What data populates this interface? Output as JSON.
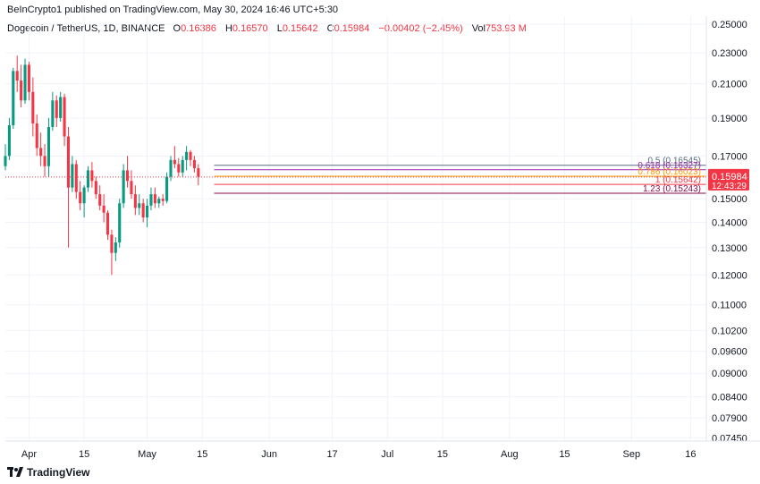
{
  "publisher": "BeInCrypto1 published on TradingView.com, May 30, 2024 16:46 UTC+5:30",
  "legend": {
    "symbol": "Dogecoin / TetherUS, 1D, BINANCE",
    "o_label": "O",
    "o": "0.16386",
    "h_label": "H",
    "h": "0.16570",
    "l_label": "L",
    "l": "0.15642",
    "c_label": "C",
    "c": "0.15984",
    "change": "−0.00402 (−2.45%)",
    "vol_label": "Vol",
    "vol": "753.93 M"
  },
  "brand": "TradingView",
  "colors": {
    "up": "#089981",
    "down": "#f23645",
    "grid": "#f0f3fa",
    "text": "#131722"
  },
  "chart_data": {
    "type": "candlestick",
    "scale": "log",
    "ylim": [
      0.0738,
      0.256
    ],
    "y_ticks": [
      "0.25000",
      "0.23000",
      "0.21000",
      "0.19000",
      "0.17000",
      "0.15000",
      "0.14000",
      "0.13000",
      "0.12000",
      "0.11000",
      "0.10200",
      "0.09600",
      "0.09000",
      "0.08400",
      "0.07900",
      "0.07450"
    ],
    "x_ticks": [
      {
        "label": "Apr",
        "day": 0
      },
      {
        "label": "15",
        "day": 14
      },
      {
        "label": "May",
        "day": 30
      },
      {
        "label": "15",
        "day": 44
      },
      {
        "label": "Jun",
        "day": 61
      },
      {
        "label": "17",
        "day": 77
      },
      {
        "label": "Jul",
        "day": 91
      },
      {
        "label": "15",
        "day": 105
      },
      {
        "label": "Aug",
        "day": 122
      },
      {
        "label": "15",
        "day": 136
      },
      {
        "label": "Sep",
        "day": 153
      },
      {
        "label": "16",
        "day": 168
      }
    ],
    "x_range_days": [
      -6,
      172
    ],
    "first_candle_day": -6,
    "candles": [
      [
        0.165,
        0.176,
        0.163,
        0.17
      ],
      [
        0.17,
        0.19,
        0.168,
        0.186
      ],
      [
        0.186,
        0.22,
        0.184,
        0.218
      ],
      [
        0.218,
        0.228,
        0.205,
        0.212
      ],
      [
        0.212,
        0.222,
        0.196,
        0.2
      ],
      [
        0.2,
        0.226,
        0.198,
        0.222
      ],
      [
        0.222,
        0.224,
        0.2,
        0.205
      ],
      [
        0.205,
        0.214,
        0.18,
        0.187
      ],
      [
        0.187,
        0.192,
        0.17,
        0.174
      ],
      [
        0.174,
        0.182,
        0.165,
        0.17
      ],
      [
        0.17,
        0.176,
        0.16,
        0.165
      ],
      [
        0.165,
        0.19,
        0.16,
        0.185
      ],
      [
        0.185,
        0.205,
        0.183,
        0.2
      ],
      [
        0.2,
        0.203,
        0.185,
        0.19
      ],
      [
        0.19,
        0.205,
        0.188,
        0.202
      ],
      [
        0.202,
        0.204,
        0.175,
        0.18
      ],
      [
        0.18,
        0.185,
        0.13,
        0.155
      ],
      [
        0.155,
        0.17,
        0.153,
        0.166
      ],
      [
        0.166,
        0.168,
        0.15,
        0.153
      ],
      [
        0.153,
        0.158,
        0.145,
        0.148
      ],
      [
        0.148,
        0.156,
        0.142,
        0.155
      ],
      [
        0.155,
        0.165,
        0.153,
        0.163
      ],
      [
        0.163,
        0.167,
        0.155,
        0.158
      ],
      [
        0.158,
        0.16,
        0.15,
        0.152
      ],
      [
        0.152,
        0.156,
        0.145,
        0.147
      ],
      [
        0.147,
        0.152,
        0.14,
        0.144
      ],
      [
        0.144,
        0.145,
        0.133,
        0.135
      ],
      [
        0.135,
        0.137,
        0.12,
        0.128
      ],
      [
        0.128,
        0.134,
        0.125,
        0.132
      ],
      [
        0.132,
        0.15,
        0.13,
        0.148
      ],
      [
        0.148,
        0.166,
        0.146,
        0.163
      ],
      [
        0.163,
        0.17,
        0.155,
        0.158
      ],
      [
        0.158,
        0.163,
        0.15,
        0.152
      ],
      [
        0.152,
        0.156,
        0.143,
        0.146
      ],
      [
        0.146,
        0.152,
        0.143,
        0.148
      ],
      [
        0.148,
        0.15,
        0.14,
        0.142
      ],
      [
        0.142,
        0.15,
        0.138,
        0.147
      ],
      [
        0.147,
        0.155,
        0.145,
        0.152
      ],
      [
        0.152,
        0.155,
        0.146,
        0.148
      ],
      [
        0.148,
        0.151,
        0.146,
        0.15
      ],
      [
        0.15,
        0.152,
        0.147,
        0.149
      ],
      [
        0.149,
        0.162,
        0.148,
        0.16
      ],
      [
        0.16,
        0.17,
        0.158,
        0.168
      ],
      [
        0.168,
        0.175,
        0.164,
        0.166
      ],
      [
        0.166,
        0.169,
        0.16,
        0.162
      ],
      [
        0.162,
        0.17,
        0.16,
        0.168
      ],
      [
        0.168,
        0.175,
        0.163,
        0.172
      ],
      [
        0.172,
        0.173,
        0.165,
        0.168
      ],
      [
        0.168,
        0.17,
        0.162,
        0.164
      ],
      [
        0.164,
        0.166,
        0.156,
        0.16
      ]
    ],
    "fib_levels": [
      {
        "label": "0.5 (0.16545)",
        "value": 0.16545,
        "color": "#5b6b7e"
      },
      {
        "label": "0.618 (0.16327)",
        "value": 0.16327,
        "color": "#9c27b0"
      },
      {
        "label": "0.786 (0.16023)",
        "value": 0.16023,
        "color": "#ff9800"
      },
      {
        "label": "1 (0.15642)",
        "value": 0.15642,
        "color": "#f23645"
      },
      {
        "label": "1.23 (0.15243)",
        "value": 0.15243,
        "color": "#880e4f"
      }
    ],
    "fib_start_day": 47,
    "last_price": {
      "value": 0.15984,
      "label": "0.15984",
      "countdown": "12:43:29",
      "color": "#f23645"
    }
  }
}
